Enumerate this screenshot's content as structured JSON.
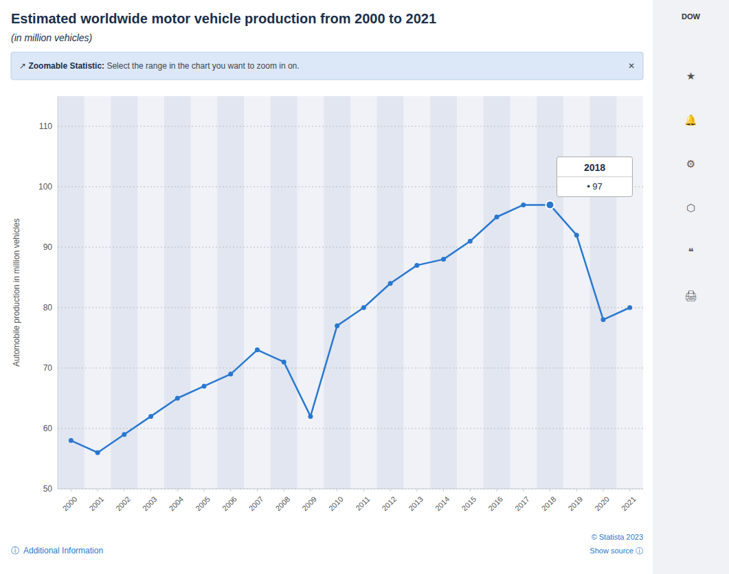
{
  "chart_data": {
    "type": "line",
    "title": "Estimated worldwide motor vehicle production from 2000 to 2021",
    "subtitle": "(in million vehicles)",
    "y_label": "Automobile production in million vehicles",
    "x": [
      2000,
      2001,
      2002,
      2003,
      2004,
      2005,
      2006,
      2007,
      2008,
      2009,
      2010,
      2011,
      2012,
      2013,
      2014,
      2015,
      2016,
      2017,
      2018,
      2019,
      2020,
      2021
    ],
    "values": [
      58,
      56,
      59,
      62,
      65,
      67,
      69,
      73,
      71,
      62,
      77,
      80,
      84,
      87,
      88,
      91,
      95,
      97,
      97,
      92,
      78,
      80
    ],
    "color": "#2878d0",
    "marker": "circle",
    "xlim": [
      1999.5,
      2021.5
    ],
    "xticks": [
      2000,
      2001,
      2002,
      2003,
      2004,
      2005,
      2006,
      2007,
      2008,
      2009,
      2010,
      2011,
      2012,
      2013,
      2014,
      2015,
      2016,
      2017,
      2018,
      2019,
      2020,
      2021
    ],
    "ylim": [
      50,
      115
    ],
    "yticks": [
      50,
      60,
      70,
      80,
      90,
      100,
      110
    ],
    "grid": true,
    "annotations": [
      "↗",
      "Zoomable Statistic:",
      " Select the range in the chart you want to zoom in on.",
      "✕",
      "2018",
      "• 97",
      "© Statista 2023",
      "Show source ⓘ",
      "ⓘ  Additional Information",
      "DOW",
      "★",
      "🔔",
      "⚙",
      "⬡",
      "❝",
      "🖨"
    ]
  }
}
